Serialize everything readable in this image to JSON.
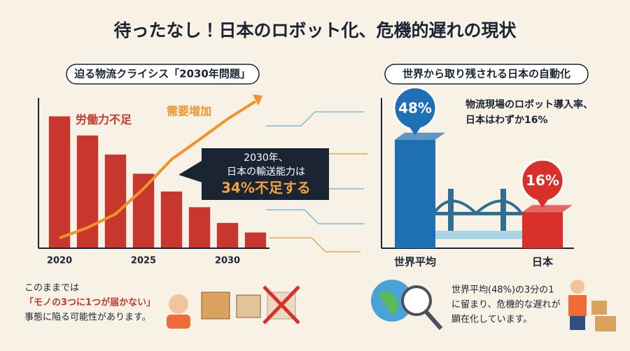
{
  "title": "待ったなし！日本のロボット化、危機的遅れの現状",
  "chart_data": [
    {
      "type": "bar",
      "subtitle": "迫る物流クライシス「2030年問題」",
      "categories": [
        "2020",
        null,
        null,
        "2025",
        null,
        null,
        "2030",
        null
      ],
      "series": [
        {
          "name": "労働力不足",
          "type": "bar",
          "color": "#c8372d",
          "values": [
            193,
            165,
            137,
            109,
            83,
            60,
            37,
            23
          ]
        },
        {
          "name": "需要増加",
          "type": "line",
          "color": "#f0932b",
          "values": [
            15,
            30,
            50,
            87,
            130,
            159,
            189,
            215
          ]
        }
      ],
      "ylim": [
        0,
        220
      ]
    },
    {
      "type": "bar",
      "subtitle": "世界から取り残される日本の自動化",
      "categories": [
        "世界平均",
        "日本"
      ],
      "values": [
        48,
        16
      ],
      "value_labels": [
        "48%",
        "16%"
      ],
      "colors": [
        "#1f6fb5",
        "#d9302c"
      ],
      "ylim": [
        0,
        60
      ]
    }
  ],
  "callout": [
    "2030年、",
    "日本の輸送能力は",
    "34%不足する"
  ],
  "annotation": [
    "物流現場のロボット導入率、",
    "日本はわずか16%"
  ],
  "notes": {
    "left": [
      "このままでは",
      "「モノの3つに1つが届かない」",
      "事態に陥る可能性があります。"
    ],
    "right": [
      "世界平均(48%)の3分の1",
      "に留まり、危機的な遅れが",
      "顕在化しています。"
    ]
  }
}
